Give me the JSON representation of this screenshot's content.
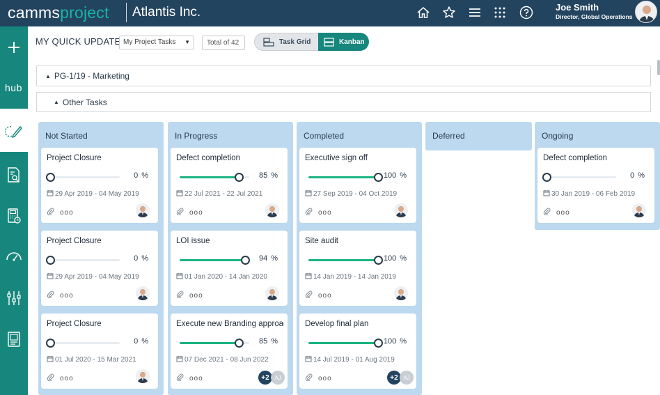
{
  "header": {
    "logo_part1": "camms",
    "logo_part2": "project",
    "org_name": "Atlantis Inc.",
    "user_name": "Joe Smith",
    "user_role": "Director, Global Operations",
    "icons": [
      "home-icon",
      "star-icon",
      "menu-icon",
      "apps-grid-icon",
      "help-icon"
    ]
  },
  "leftnav": {
    "hub_label": "hub",
    "icons": [
      "plus-icon",
      "hub-icon",
      "quick-update-icon",
      "report-search-icon",
      "calculator-icon",
      "dashboard-gauge-icon",
      "settings-sliders-icon",
      "document-icon"
    ]
  },
  "toolbar": {
    "title": "MY QUICK UPDATE",
    "select_value": "My Project Tasks",
    "total": "Total of 42",
    "task_grid_label": "Task Grid",
    "kanban_label": "Kanban"
  },
  "groups": {
    "project": "PG-1/19 - Marketing",
    "other": "Other Tasks"
  },
  "columns": [
    {
      "title": "Not Started",
      "cards": [
        {
          "title": "Project Closure",
          "progress": 0,
          "dates": "29 Apr 2019 - 04 May 2019"
        },
        {
          "title": "Project Closure",
          "progress": 0,
          "dates": "29 Apr 2019 - 04 May 2019"
        },
        {
          "title": "Project Closure",
          "progress": 0,
          "dates": "01 Jul 2020 - 15 Mar 2021"
        }
      ]
    },
    {
      "title": "In Progress",
      "cards": [
        {
          "title": "Defect completion",
          "progress": 85,
          "dates": "22 Jul 2021 - 22 Jul 2021"
        },
        {
          "title": "LOI issue",
          "progress": 94,
          "dates": "01 Jan 2020 - 14 Jan 2020"
        },
        {
          "title": "Execute new Branding approach",
          "progress": 85,
          "dates": "07 Dec 2021 - 08 Jun 2022",
          "extra_count": "+2",
          "extra_initials": "AJ"
        }
      ]
    },
    {
      "title": "Completed",
      "cards": [
        {
          "title": "Executive sign off",
          "progress": 100,
          "dates": "27 Sep 2019 - 04 Oct 2019"
        },
        {
          "title": "Site audit",
          "progress": 100,
          "dates": "14 Jan 2019 - 14 Jan 2019"
        },
        {
          "title": "Develop final plan",
          "progress": 100,
          "dates": "14 Jul 2019 - 01 Aug 2019",
          "extra_count": "+2",
          "extra_initials": "AJ"
        }
      ]
    },
    {
      "title": "Deferred",
      "cards": []
    },
    {
      "title": "Ongoing",
      "cards": [
        {
          "title": "Defect completion",
          "progress": 0,
          "dates": "30 Jan 2019 - 06 Feb 2019"
        }
      ]
    }
  ],
  "percent_sign": "%",
  "more_dots": "ooo",
  "colors": {
    "topbar": "#23445f",
    "nav": "#17877d",
    "accent_teal": "#1ab3a6",
    "progress_green": "#1bb37f",
    "column_bg": "#bcd9f0"
  }
}
